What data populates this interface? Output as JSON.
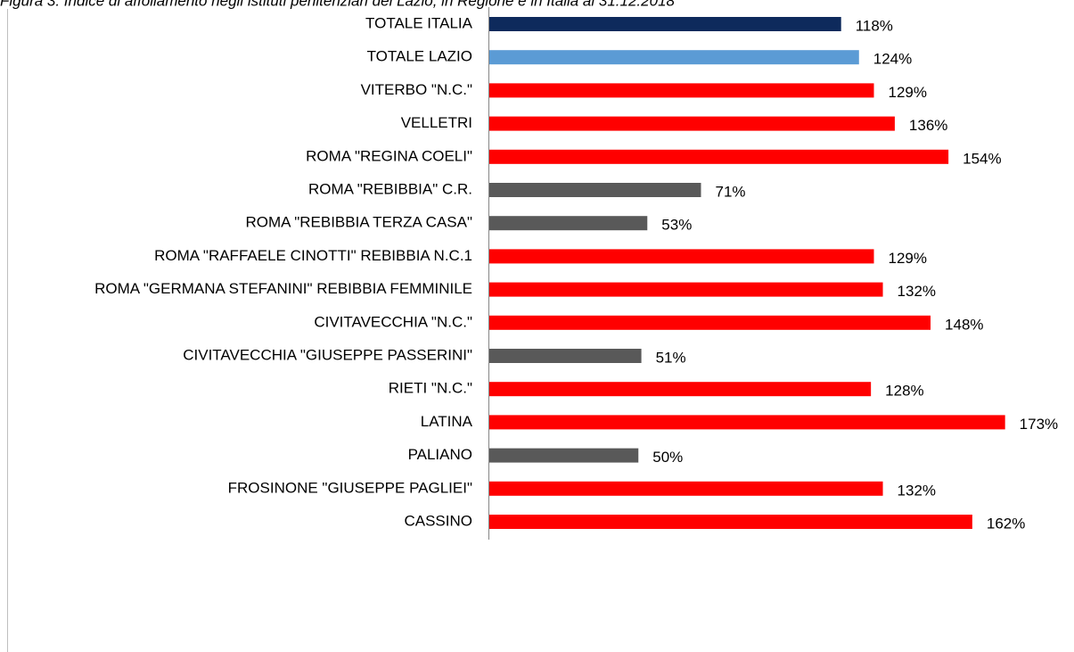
{
  "chart_data": {
    "type": "bar",
    "title": "Figura 3. Indice di affollamento negli istituti penitenziari del Lazio, in Regione e in Italia al 31.12.2018",
    "categories": [
      "TOTALE ITALIA",
      "TOTALE LAZIO",
      "VITERBO \"N.C.\"",
      "VELLETRI",
      "ROMA \"REGINA COELI\"",
      "ROMA \"REBIBBIA\" C.R.",
      "ROMA \"REBIBBIA TERZA CASA\"",
      "ROMA \"RAFFAELE CINOTTI\" REBIBBIA N.C.1",
      "ROMA \"GERMANA STEFANINI\" REBIBBIA FEMMINILE",
      "CIVITAVECCHIA \"N.C.\"",
      "CIVITAVECCHIA \"GIUSEPPE PASSERINI\"",
      "RIETI \"N.C.\"",
      "LATINA",
      "PALIANO",
      "FROSINONE \"GIUSEPPE PAGLIEI\"",
      "CASSINO"
    ],
    "values": [
      118,
      124,
      129,
      136,
      154,
      71,
      53,
      129,
      132,
      148,
      51,
      128,
      173,
      50,
      132,
      162
    ],
    "value_labels": [
      "118%",
      "124%",
      "129%",
      "136%",
      "154%",
      "71%",
      "53%",
      "129%",
      "132%",
      "148%",
      "51%",
      "128%",
      "173%",
      "50%",
      "132%",
      "162%"
    ],
    "colors": [
      "#0e2a5c",
      "#5b9bd5",
      "#ff0000",
      "#ff0000",
      "#ff0000",
      "#595959",
      "#595959",
      "#ff0000",
      "#ff0000",
      "#ff0000",
      "#595959",
      "#ff0000",
      "#ff0000",
      "#595959",
      "#ff0000",
      "#ff0000"
    ]
  }
}
